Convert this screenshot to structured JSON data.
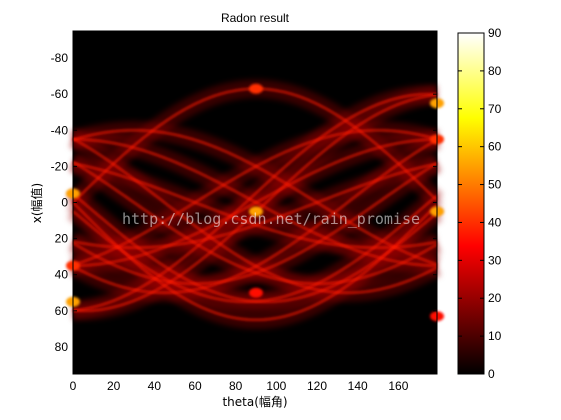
{
  "chart_data": {
    "type": "heatmap",
    "title": "Radon result",
    "xlabel": "theta(幅角)",
    "ylabel": "x(幅值)",
    "xlim": [
      0,
      179
    ],
    "ylim": [
      -95,
      95
    ],
    "y_reversed": true,
    "x_ticks": [
      0,
      20,
      40,
      60,
      80,
      100,
      120,
      140,
      160
    ],
    "y_ticks": [
      -80,
      -60,
      -40,
      -20,
      0,
      20,
      40,
      60,
      80
    ],
    "colormap": "hot",
    "clim": [
      0,
      90
    ],
    "colorbar_ticks": [
      0,
      10,
      20,
      30,
      40,
      50,
      60,
      70,
      80,
      90
    ],
    "description_points": {
      "bright_spots": [
        {
          "theta": 0,
          "x": -5,
          "value": 55
        },
        {
          "theta": 0,
          "x": 55,
          "value": 55
        },
        {
          "theta": 0,
          "x": 35,
          "value": 40
        },
        {
          "theta": 90,
          "x": 5,
          "value": 55
        },
        {
          "theta": 90,
          "x": -63,
          "value": 40
        },
        {
          "theta": 90,
          "x": 50,
          "value": 35
        },
        {
          "theta": 179,
          "x": -55,
          "value": 55
        },
        {
          "theta": 179,
          "x": 5,
          "value": 55
        },
        {
          "theta": 179,
          "x": -35,
          "value": 40
        },
        {
          "theta": 179,
          "x": 63,
          "value": 35
        }
      ]
    }
  },
  "watermark": "http://blog.csdn.net/rain_promise"
}
